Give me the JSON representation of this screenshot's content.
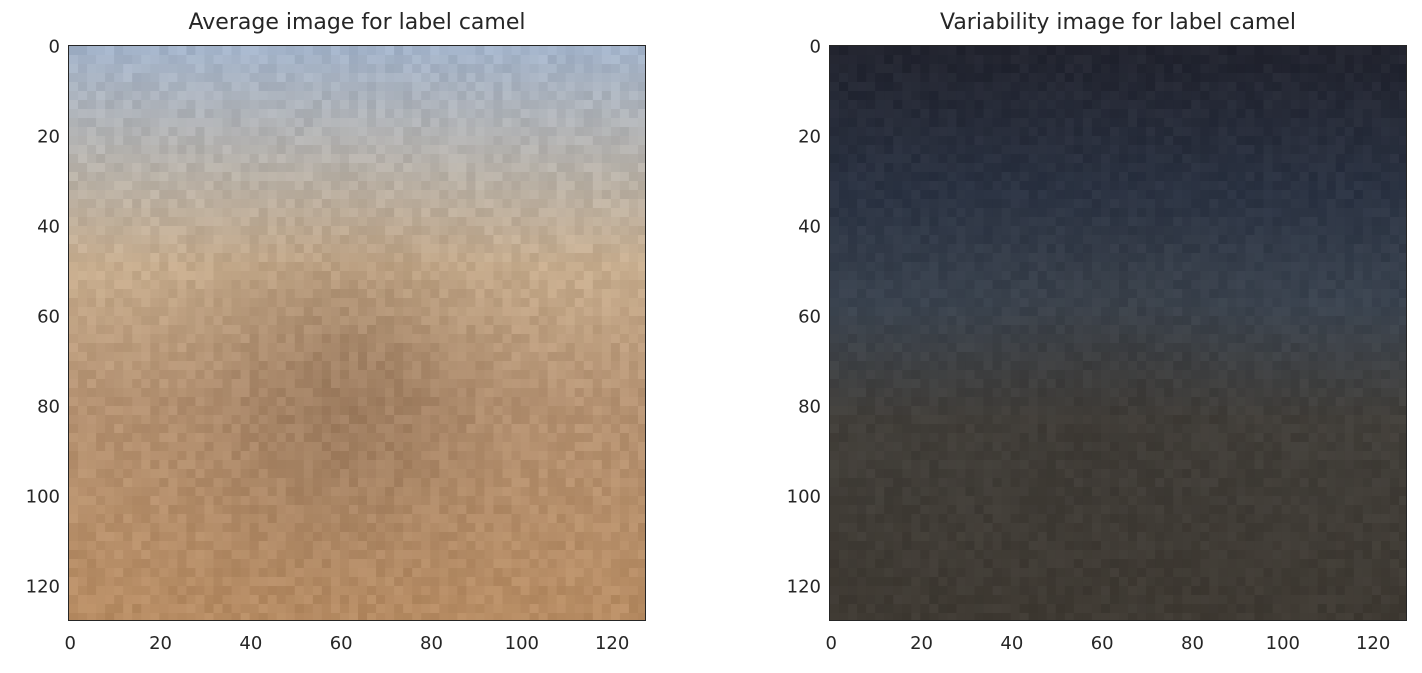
{
  "chart_data": [
    {
      "type": "heatmap",
      "title": "Average image for label camel",
      "xlabel": "",
      "ylabel": "",
      "image_size": [
        128,
        128
      ],
      "xlim": [
        0,
        127
      ],
      "ylim": [
        127,
        0
      ],
      "xticks": [
        "0",
        "20",
        "40",
        "60",
        "80",
        "100",
        "120"
      ],
      "yticks": [
        "0",
        "20",
        "40",
        "60",
        "80",
        "100",
        "120"
      ],
      "grid": false,
      "colors": {
        "sky": "#a3b3c9",
        "horizon": "#b9b2a8",
        "sand_light": "#c7ad8e",
        "sand_mid": "#b69373",
        "sand_dark": "#8d6d52",
        "ground": "#b78c63"
      }
    },
    {
      "type": "heatmap",
      "title": "Variability image for label camel",
      "xlabel": "",
      "ylabel": "",
      "image_size": [
        128,
        128
      ],
      "xlim": [
        0,
        127
      ],
      "ylim": [
        127,
        0
      ],
      "xticks": [
        "0",
        "20",
        "40",
        "60",
        "80",
        "100",
        "120"
      ],
      "yticks": [
        "0",
        "20",
        "40",
        "60",
        "80",
        "100",
        "120"
      ],
      "grid": false,
      "colors": {
        "top": "#22242f",
        "upper": "#2b3343",
        "middle": "#3b4450",
        "lower": "#423f3a",
        "ground": "#3f3a33"
      }
    }
  ]
}
